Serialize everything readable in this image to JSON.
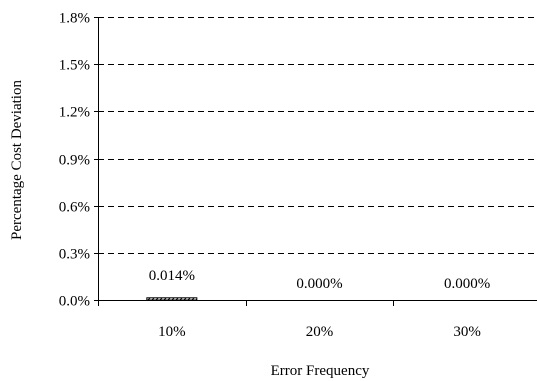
{
  "chart_data": {
    "type": "bar",
    "categories": [
      "10%",
      "20%",
      "30%"
    ],
    "values": [
      0.014,
      0.0,
      0.0
    ],
    "data_labels": [
      "0.014%",
      "0.000%",
      "0.000%"
    ],
    "xlabel": "Error Frequency",
    "ylabel": "Percentage Cost Deviation",
    "ylim": [
      0,
      1.8
    ],
    "yticks": [
      0,
      0.3,
      0.6,
      0.9,
      1.2,
      1.5,
      1.8
    ],
    "ytick_labels": [
      "0.0%",
      "0.3%",
      "0.6%",
      "0.9%",
      "1.2%",
      "1.5%",
      "1.8%"
    ],
    "grid": "y-dashed",
    "legend": "none",
    "colors": {
      "bar_fill": "#ffffff",
      "bar_stroke": "#000000",
      "bar_hatch": "#000000",
      "grid": "#000000",
      "axis": "#000000",
      "background": "#ffffff"
    }
  }
}
